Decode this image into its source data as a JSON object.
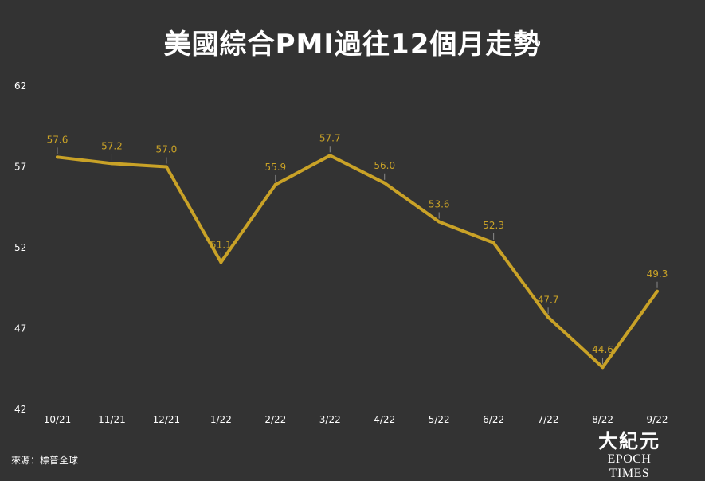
{
  "title": "美國綜合PMI過往12個月走勢",
  "source": "來源：標普全球",
  "logo": {
    "chinese": "大紀元",
    "english": "EPOCH TIMES"
  },
  "colors": {
    "background": "#333333",
    "line": "#c9a227",
    "label": "#c9a227",
    "text": "#ffffff"
  },
  "chart_data": {
    "type": "line",
    "title": "美國綜合PMI過往12個月走勢",
    "xlabel": "",
    "ylabel": "",
    "categories": [
      "10/21",
      "11/21",
      "12/21",
      "1/22",
      "2/22",
      "3/22",
      "4/22",
      "5/22",
      "6/22",
      "7/22",
      "8/22",
      "9/22"
    ],
    "values": [
      57.6,
      57.2,
      57.0,
      51.1,
      55.9,
      57.7,
      56.0,
      53.6,
      52.3,
      47.7,
      44.6,
      49.3
    ],
    "value_labels": [
      "57.6",
      "57.2",
      "57.0",
      "51.1",
      "55.9",
      "57.7",
      "56.0",
      "53.6",
      "52.3",
      "47.7",
      "44.6",
      "49.3"
    ],
    "ylim": [
      42,
      62
    ],
    "yticks": [
      42,
      47,
      52,
      57,
      62
    ],
    "grid": false,
    "legend": "none"
  }
}
